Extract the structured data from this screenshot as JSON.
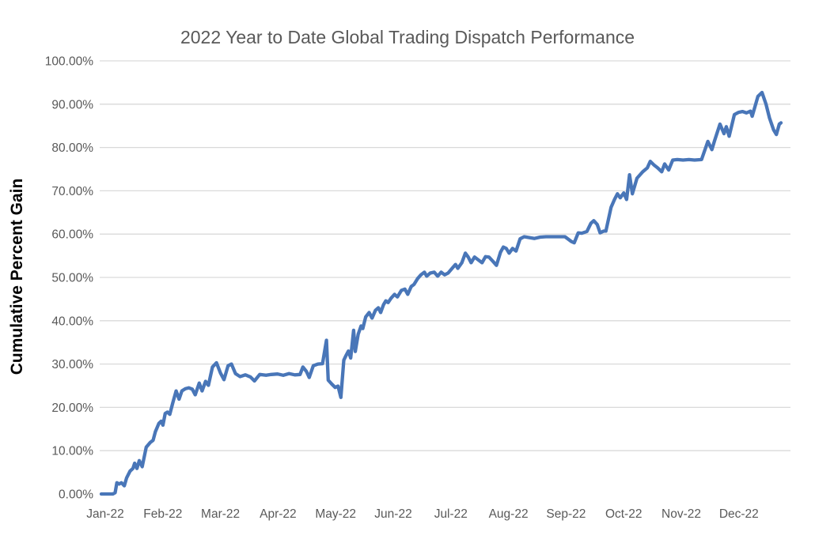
{
  "chart_data": {
    "type": "line",
    "title": "2022 Year to Date Global Trading Dispatch Performance",
    "xlabel": "",
    "ylabel": "Cumulative Percent Gain",
    "legend": "none",
    "grid": "horizontal-only",
    "ylim": [
      0,
      100
    ],
    "y_tick_labels": [
      "0.00%",
      "10.00%",
      "20.00%",
      "30.00%",
      "40.00%",
      "50.00%",
      "60.00%",
      "70.00%",
      "80.00%",
      "90.00%",
      "100.00%"
    ],
    "y_tick_values": [
      0,
      10,
      20,
      30,
      40,
      50,
      60,
      70,
      80,
      90,
      100
    ],
    "x_tick_labels": [
      "Jan-22",
      "Feb-22",
      "Mar-22",
      "Apr-22",
      "May-22",
      "Jun-22",
      "Jul-22",
      "Aug-22",
      "Sep-22",
      "Oct-22",
      "Nov-22",
      "Dec-22"
    ],
    "colors": {
      "line": "#4976B8",
      "gridline": "#D9D9D9",
      "title": "#595959",
      "tick_label": "#595959",
      "y_axis_title": "#000000"
    },
    "series": [
      {
        "name": "Cumulative Percent Gain",
        "x_unit": "months-since-Jan-2022",
        "y_unit": "percent",
        "points": [
          [
            0.0,
            0.0
          ],
          [
            0.1,
            0.0
          ],
          [
            0.2,
            0.0
          ],
          [
            0.24,
            0.3
          ],
          [
            0.27,
            2.6
          ],
          [
            0.31,
            2.3
          ],
          [
            0.35,
            2.6
          ],
          [
            0.4,
            1.9
          ],
          [
            0.44,
            3.7
          ],
          [
            0.5,
            5.3
          ],
          [
            0.55,
            5.9
          ],
          [
            0.58,
            7.1
          ],
          [
            0.62,
            5.9
          ],
          [
            0.66,
            7.7
          ],
          [
            0.71,
            6.3
          ],
          [
            0.78,
            10.8
          ],
          [
            0.85,
            11.9
          ],
          [
            0.9,
            12.4
          ],
          [
            0.94,
            14.4
          ],
          [
            1.0,
            16.3
          ],
          [
            1.04,
            16.8
          ],
          [
            1.07,
            15.9
          ],
          [
            1.11,
            18.6
          ],
          [
            1.15,
            18.9
          ],
          [
            1.19,
            18.4
          ],
          [
            1.24,
            21.0
          ],
          [
            1.3,
            23.8
          ],
          [
            1.35,
            21.9
          ],
          [
            1.4,
            23.8
          ],
          [
            1.46,
            24.3
          ],
          [
            1.52,
            24.5
          ],
          [
            1.58,
            24.2
          ],
          [
            1.63,
            22.9
          ],
          [
            1.7,
            25.6
          ],
          [
            1.75,
            23.8
          ],
          [
            1.81,
            26.0
          ],
          [
            1.86,
            25.1
          ],
          [
            1.93,
            29.3
          ],
          [
            2.0,
            30.3
          ],
          [
            2.07,
            27.9
          ],
          [
            2.13,
            26.4
          ],
          [
            2.2,
            29.6
          ],
          [
            2.26,
            30.0
          ],
          [
            2.33,
            27.8
          ],
          [
            2.41,
            27.1
          ],
          [
            2.5,
            27.5
          ],
          [
            2.59,
            27.0
          ],
          [
            2.66,
            26.1
          ],
          [
            2.75,
            27.6
          ],
          [
            2.86,
            27.4
          ],
          [
            2.95,
            27.6
          ],
          [
            3.06,
            27.7
          ],
          [
            3.16,
            27.4
          ],
          [
            3.26,
            27.8
          ],
          [
            3.36,
            27.5
          ],
          [
            3.45,
            27.6
          ],
          [
            3.5,
            29.3
          ],
          [
            3.56,
            28.3
          ],
          [
            3.61,
            26.9
          ],
          [
            3.68,
            29.6
          ],
          [
            3.76,
            30.0
          ],
          [
            3.84,
            30.1
          ],
          [
            3.91,
            35.5
          ],
          [
            3.94,
            26.3
          ],
          [
            4.0,
            25.4
          ],
          [
            4.06,
            24.6
          ],
          [
            4.11,
            24.9
          ],
          [
            4.16,
            22.3
          ],
          [
            4.21,
            30.9
          ],
          [
            4.25,
            32.0
          ],
          [
            4.29,
            33.0
          ],
          [
            4.33,
            31.4
          ],
          [
            4.38,
            37.8
          ],
          [
            4.41,
            32.9
          ],
          [
            4.46,
            36.9
          ],
          [
            4.51,
            38.8
          ],
          [
            4.54,
            38.2
          ],
          [
            4.59,
            40.9
          ],
          [
            4.65,
            41.9
          ],
          [
            4.7,
            40.6
          ],
          [
            4.76,
            42.4
          ],
          [
            4.81,
            43.0
          ],
          [
            4.85,
            41.9
          ],
          [
            4.9,
            43.7
          ],
          [
            4.94,
            44.6
          ],
          [
            4.98,
            44.2
          ],
          [
            5.03,
            45.2
          ],
          [
            5.09,
            46.1
          ],
          [
            5.14,
            45.5
          ],
          [
            5.21,
            47.0
          ],
          [
            5.27,
            47.3
          ],
          [
            5.32,
            46.1
          ],
          [
            5.38,
            47.9
          ],
          [
            5.43,
            48.4
          ],
          [
            5.49,
            49.7
          ],
          [
            5.55,
            50.6
          ],
          [
            5.61,
            51.2
          ],
          [
            5.65,
            50.3
          ],
          [
            5.71,
            51.0
          ],
          [
            5.78,
            51.2
          ],
          [
            5.84,
            50.3
          ],
          [
            5.9,
            51.2
          ],
          [
            5.96,
            50.6
          ],
          [
            6.02,
            51.0
          ],
          [
            6.09,
            52.1
          ],
          [
            6.15,
            53.0
          ],
          [
            6.19,
            52.1
          ],
          [
            6.26,
            53.4
          ],
          [
            6.32,
            55.6
          ],
          [
            6.37,
            54.7
          ],
          [
            6.42,
            53.4
          ],
          [
            6.48,
            54.7
          ],
          [
            6.55,
            54.0
          ],
          [
            6.61,
            53.4
          ],
          [
            6.67,
            54.8
          ],
          [
            6.73,
            54.7
          ],
          [
            6.8,
            53.7
          ],
          [
            6.86,
            52.8
          ],
          [
            6.93,
            55.8
          ],
          [
            6.98,
            57.0
          ],
          [
            7.03,
            56.7
          ],
          [
            7.08,
            55.6
          ],
          [
            7.14,
            56.7
          ],
          [
            7.2,
            56.1
          ],
          [
            7.27,
            58.9
          ],
          [
            7.34,
            59.4
          ],
          [
            7.43,
            59.2
          ],
          [
            7.52,
            59.0
          ],
          [
            7.62,
            59.3
          ],
          [
            7.72,
            59.4
          ],
          [
            7.83,
            59.4
          ],
          [
            7.95,
            59.4
          ],
          [
            8.05,
            59.4
          ],
          [
            8.16,
            58.3
          ],
          [
            8.21,
            58.0
          ],
          [
            8.28,
            60.3
          ],
          [
            8.34,
            60.2
          ],
          [
            8.43,
            60.6
          ],
          [
            8.5,
            62.5
          ],
          [
            8.55,
            63.1
          ],
          [
            8.61,
            62.2
          ],
          [
            8.66,
            60.3
          ],
          [
            8.72,
            60.7
          ],
          [
            8.76,
            60.7
          ],
          [
            8.85,
            66.2
          ],
          [
            8.91,
            68.0
          ],
          [
            8.96,
            69.3
          ],
          [
            9.01,
            68.4
          ],
          [
            9.07,
            69.5
          ],
          [
            9.12,
            68.0
          ],
          [
            9.17,
            73.7
          ],
          [
            9.22,
            69.3
          ],
          [
            9.3,
            72.9
          ],
          [
            9.4,
            74.4
          ],
          [
            9.48,
            75.3
          ],
          [
            9.53,
            76.8
          ],
          [
            9.6,
            75.9
          ],
          [
            9.66,
            75.3
          ],
          [
            9.73,
            74.4
          ],
          [
            9.78,
            76.2
          ],
          [
            9.85,
            74.8
          ],
          [
            9.92,
            77.1
          ],
          [
            10.0,
            77.2
          ],
          [
            10.1,
            77.1
          ],
          [
            10.2,
            77.2
          ],
          [
            10.3,
            77.1
          ],
          [
            10.42,
            77.2
          ],
          [
            10.53,
            81.4
          ],
          [
            10.6,
            79.5
          ],
          [
            10.65,
            81.7
          ],
          [
            10.74,
            85.4
          ],
          [
            10.81,
            83.2
          ],
          [
            10.85,
            84.8
          ],
          [
            10.9,
            82.6
          ],
          [
            10.99,
            87.6
          ],
          [
            11.06,
            88.1
          ],
          [
            11.13,
            88.3
          ],
          [
            11.2,
            88.0
          ],
          [
            11.27,
            88.4
          ],
          [
            11.3,
            87.2
          ],
          [
            11.4,
            91.8
          ],
          [
            11.47,
            92.7
          ],
          [
            11.54,
            90.0
          ],
          [
            11.6,
            86.8
          ],
          [
            11.67,
            84.1
          ],
          [
            11.72,
            83.0
          ],
          [
            11.77,
            85.4
          ],
          [
            11.8,
            85.7
          ]
        ]
      }
    ]
  }
}
